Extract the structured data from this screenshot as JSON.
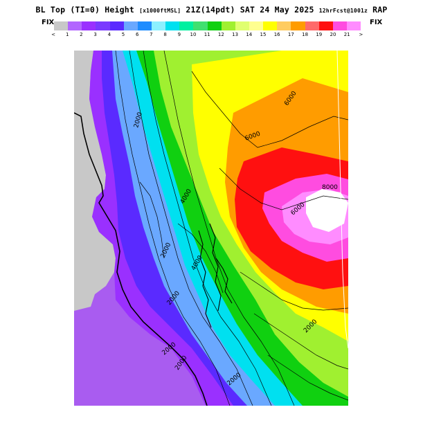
{
  "title": {
    "main": "BL Top (TI=0) Height",
    "units": "[x1000ftMSL]",
    "valid": "21Z(14pdt) SAT 24 May 2025",
    "forecast": "12hrFcst@1001z",
    "model": "RAP"
  },
  "colorbar": {
    "fix_left": "FIX",
    "fix_right": "FIX",
    "colors": [
      "#c8c8c8",
      "#b266ff",
      "#9a30ff",
      "#7a3aff",
      "#5a2aff",
      "#6aa8ff",
      "#1e8cff",
      "#8cf0ff",
      "#00e0f0",
      "#00f0a0",
      "#40e070",
      "#10d010",
      "#a0f030",
      "#e0ff70",
      "#ffff90",
      "#ffff00",
      "#ffcc60",
      "#ff9c00",
      "#ff6a6a",
      "#ff1010",
      "#ff4ce0",
      "#ff8cff"
    ],
    "tick_labels": [
      "<",
      "1",
      "2",
      "3",
      "4",
      "5",
      "6",
      "7",
      "8",
      "9",
      "10",
      "11",
      "12",
      "13",
      "14",
      "15",
      "16",
      "17",
      "18",
      "19",
      "20",
      "21",
      ">"
    ]
  },
  "contour_labels": [
    "6000",
    "6000",
    "6000",
    "8000",
    "4000",
    "4000",
    "2000",
    "2000",
    "2000",
    "2000",
    "2000",
    "2000",
    "2000"
  ]
}
